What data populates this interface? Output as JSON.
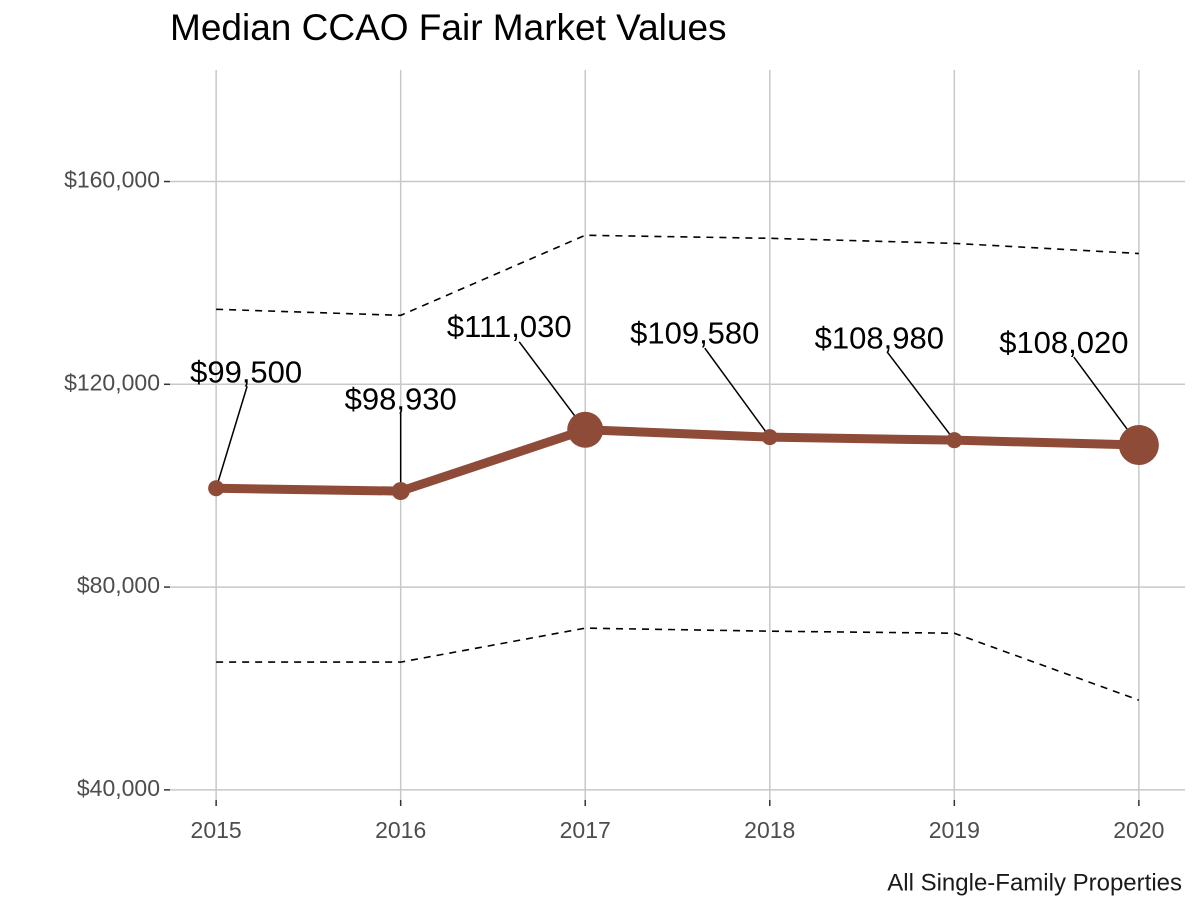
{
  "chart_data": {
    "type": "line",
    "title": "Median CCAO Fair Market Values",
    "caption": "All Single-Family Properties",
    "x": [
      2015,
      2016,
      2017,
      2018,
      2019,
      2020
    ],
    "xlim": [
      2014.75,
      2020.25
    ],
    "xticks": [
      2015,
      2016,
      2017,
      2018,
      2019,
      2020
    ],
    "ylim": [
      38000,
      182000
    ],
    "yticks": [
      {
        "value": 40000,
        "label": "$40,000"
      },
      {
        "value": 80000,
        "label": "$80,000"
      },
      {
        "value": 120000,
        "label": "$120,000"
      },
      {
        "value": 160000,
        "label": "$160,000"
      }
    ],
    "grid": true,
    "series": [
      {
        "color": "#8e4b38",
        "values": [
          99500,
          98930,
          111030,
          109580,
          108980,
          108020
        ],
        "value_labels": [
          "$99,500",
          "$98,930",
          "$111,030",
          "$109,580",
          "$108,980",
          "$108,020"
        ],
        "marker_sizes": [
          8,
          9,
          18,
          8,
          8,
          20
        ]
      },
      {
        "color": "#000000",
        "dashed": true,
        "values": [
          134800,
          133600,
          149400,
          148800,
          147800,
          145800
        ]
      },
      {
        "color": "#000000",
        "dashed": true,
        "values": [
          65200,
          65200,
          71900,
          71300,
          70900,
          57700
        ]
      }
    ]
  }
}
